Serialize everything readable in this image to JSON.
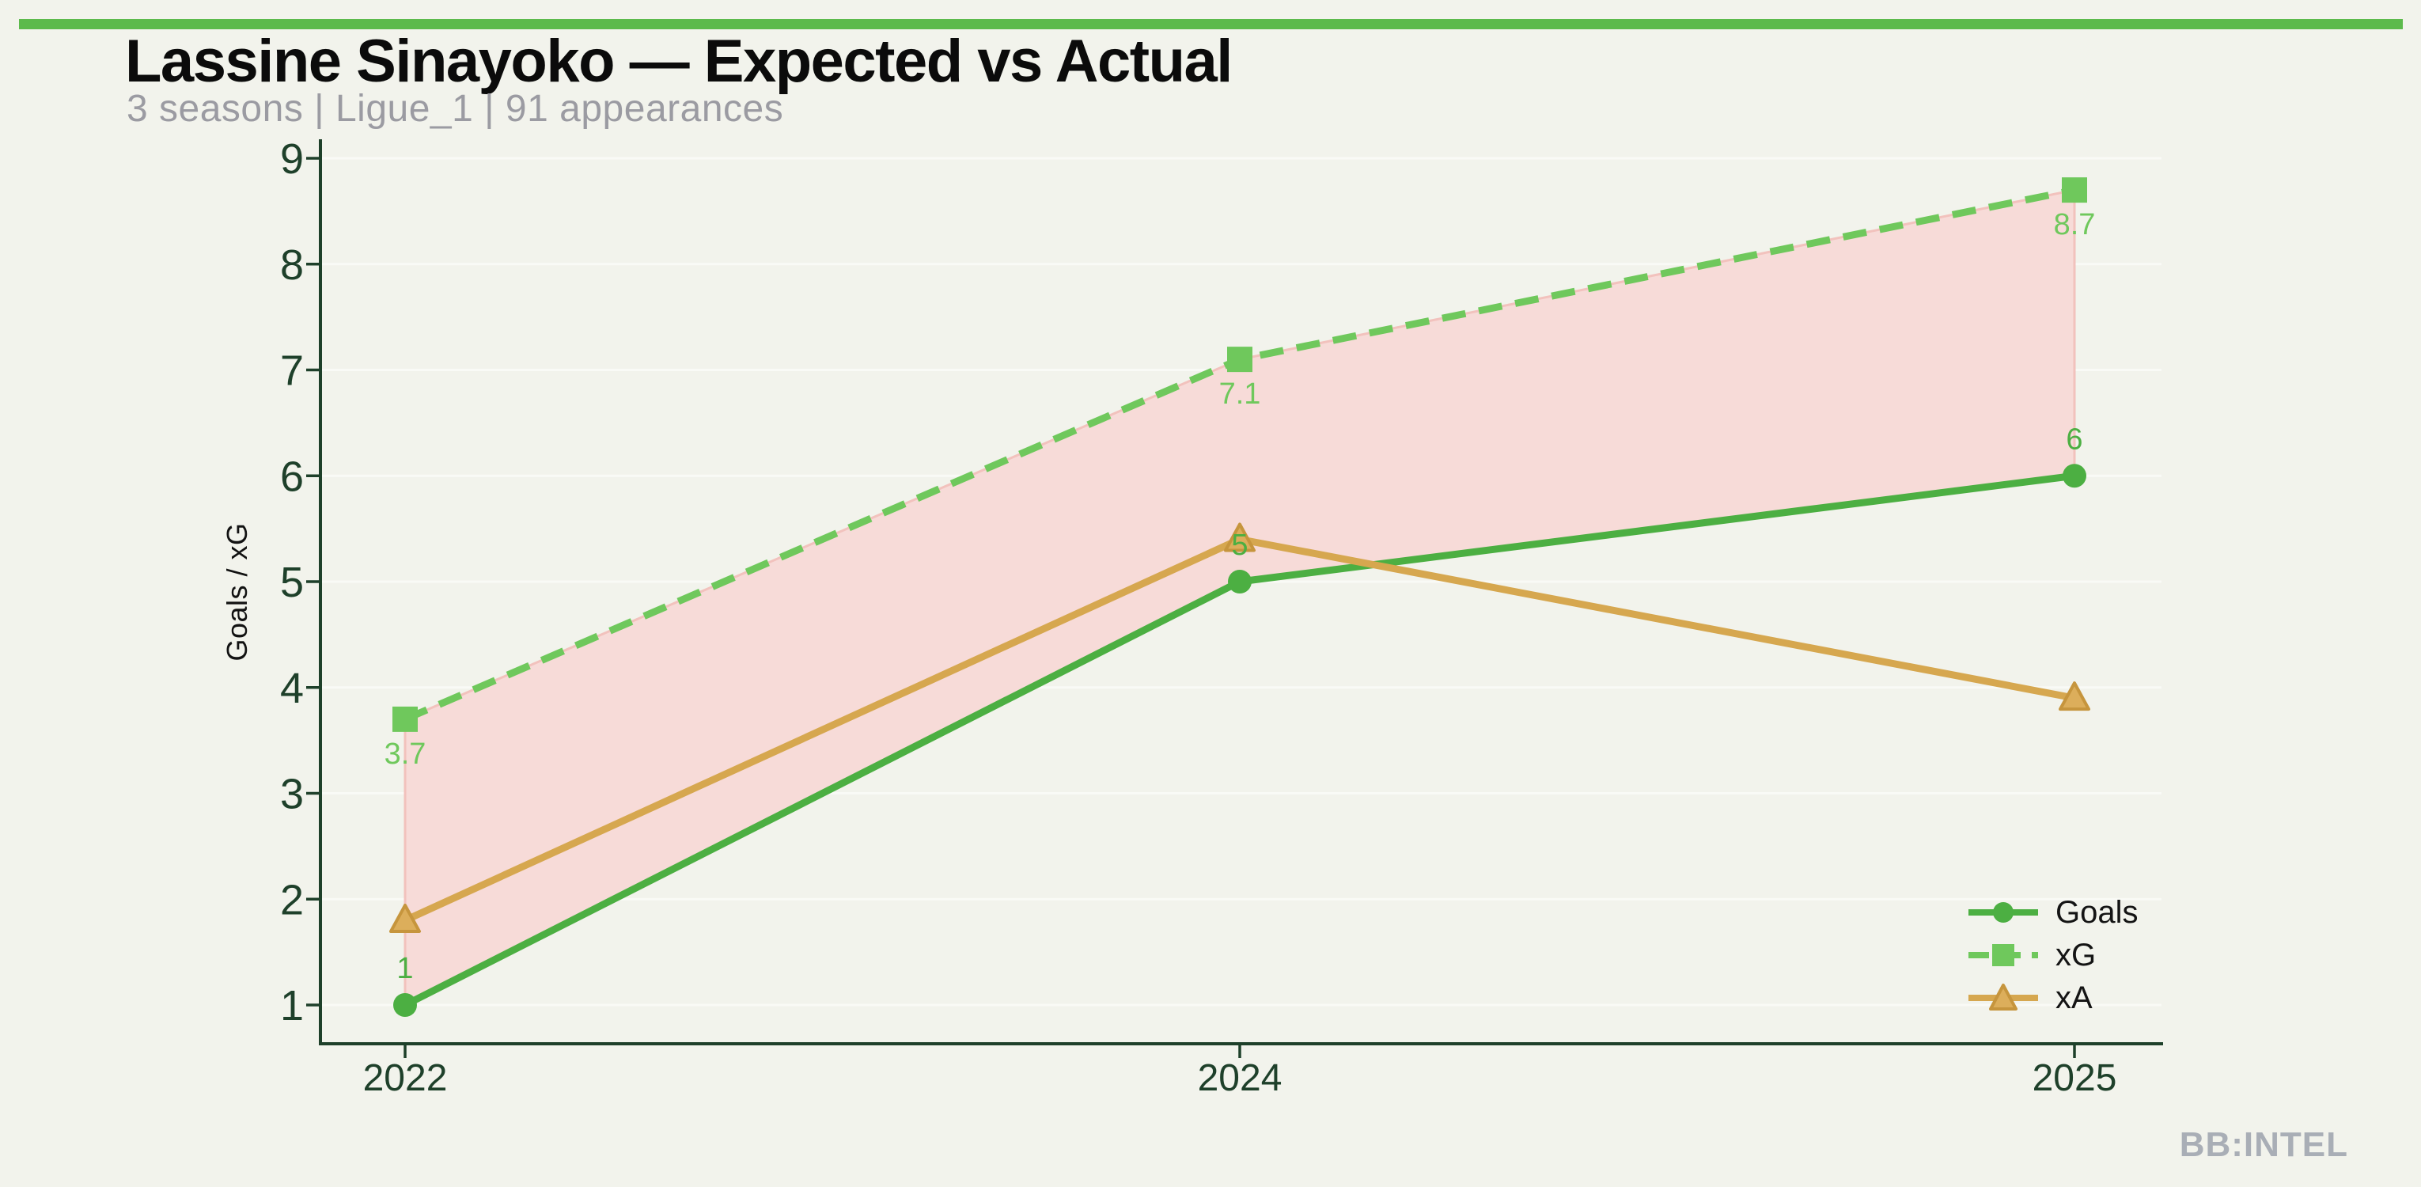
{
  "page": {
    "title": "Lassine Sinayoko — Expected vs Actual",
    "subtitle": "3 seasons | Ligue_1 | 91 appearances",
    "watermark": "BB:INTEL"
  },
  "colors": {
    "background": "#F2F3EC",
    "accent_bar": "#5CBA4C",
    "goals": "#4CAF42",
    "xg": "#6FC85C",
    "xa": "#D6A74F",
    "xa_marker_fill": "#DCAE5B",
    "xa_marker_edge": "#C6953D",
    "band_fill": "#F7DBD8",
    "band_stroke": "#F2C2BD",
    "axis": "#1E402A",
    "title_text": "#0B0B0B",
    "subtitle_text": "#9B9BA2",
    "watermark_text": "#A9AEB6",
    "legend_text": "#141414",
    "gridline": "rgba(255,255,255,0.55)"
  },
  "chart_data": {
    "type": "line",
    "title": "Lassine Sinayoko — Expected vs Actual",
    "subtitle": "3 seasons | Ligue_1 | 91 appearances",
    "categories": [
      "2022",
      "2024",
      "2025"
    ],
    "series": [
      {
        "name": "Goals",
        "values": [
          1,
          5,
          6
        ],
        "marker": "circle",
        "line_style": "solid",
        "color": "#4CAF42",
        "point_labels": [
          "1",
          "5",
          "6"
        ],
        "label_position": "above"
      },
      {
        "name": "xG",
        "values": [
          3.7,
          7.1,
          8.7
        ],
        "marker": "square",
        "line_style": "dashed",
        "color": "#6FC85C",
        "point_labels": [
          "3.7",
          "7.1",
          "8.7"
        ],
        "label_position": "below"
      },
      {
        "name": "xA",
        "values": [
          1.8,
          5.4,
          3.9
        ],
        "marker": "triangle",
        "line_style": "solid",
        "color": "#D6A74F",
        "point_labels": [],
        "label_position": "none"
      }
    ],
    "band_between": [
      "xG",
      "Goals"
    ],
    "xlabel": "",
    "ylabel": "Goals / xG",
    "yticks": [
      1,
      2,
      3,
      4,
      5,
      6,
      7,
      8,
      9
    ],
    "ylim": [
      0.6,
      9.2
    ],
    "grid": "horizontal",
    "legend_position": "lower right"
  }
}
